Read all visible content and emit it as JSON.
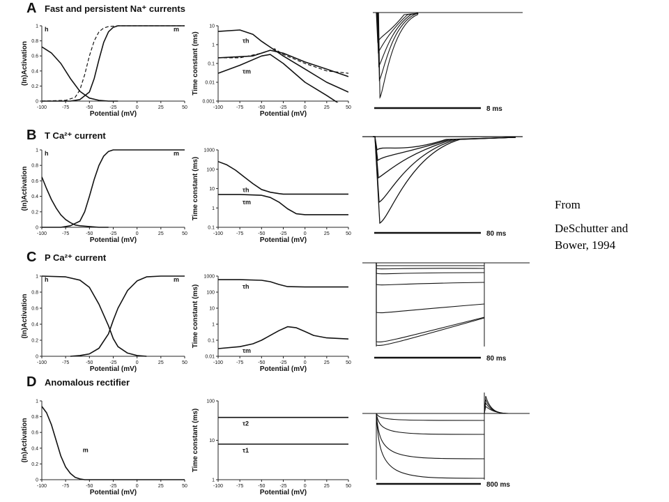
{
  "citation": {
    "line1": "From",
    "line2": "DeSchutter and Bower, 1994"
  },
  "panels": [
    {
      "letter": "A",
      "title": "Fast and persistent Na⁺ currents",
      "scale": "8 ms"
    },
    {
      "letter": "B",
      "title": "T Ca²⁺ current",
      "scale": "80 ms"
    },
    {
      "letter": "C",
      "title": "P Ca²⁺ current",
      "scale": "80 ms"
    },
    {
      "letter": "D",
      "title": "Anomalous rectifier",
      "scale": "800 ms"
    }
  ],
  "chart_data": [
    {
      "panel": "A",
      "kind": "activation",
      "type": "line",
      "xlabel": "Potential (mV)",
      "ylabel": "(In)Activation",
      "xlim": [
        -100,
        50
      ],
      "ylim": [
        0,
        1
      ],
      "xticks": [
        "-100",
        "-75",
        "-50",
        "-25",
        "0",
        "25",
        "50"
      ],
      "yticks": [
        "0",
        "0.2",
        "0.4",
        "0.6",
        "0.8",
        "1"
      ],
      "series": [
        {
          "name": "h",
          "style": "solid",
          "x": [
            -100,
            -90,
            -80,
            -70,
            -60,
            -50,
            -40,
            -30,
            -20
          ],
          "y": [
            0.72,
            0.64,
            0.5,
            0.3,
            0.13,
            0.04,
            0.01,
            0.0,
            0.0
          ]
        },
        {
          "name": "m",
          "style": "solid",
          "x": [
            -100,
            -70,
            -60,
            -50,
            -45,
            -40,
            -35,
            -30,
            -25,
            -20,
            -10,
            0,
            25,
            50
          ],
          "y": [
            0.0,
            0.0,
            0.02,
            0.12,
            0.3,
            0.55,
            0.78,
            0.92,
            0.98,
            1.0,
            1.0,
            1.0,
            1.0,
            1.0
          ]
        },
        {
          "name": "",
          "style": "dashed",
          "x": [
            -100,
            -75,
            -65,
            -60,
            -55,
            -50,
            -45,
            -40,
            -35,
            -30,
            -20,
            0,
            50
          ],
          "y": [
            0.0,
            0.01,
            0.05,
            0.15,
            0.35,
            0.6,
            0.8,
            0.92,
            0.97,
            0.99,
            1.0,
            1.0,
            1.0
          ]
        }
      ]
    },
    {
      "panel": "A",
      "kind": "tau",
      "type": "line",
      "yscale": "log",
      "xlabel": "Potential (mV)",
      "ylabel": "Time constant (ms)",
      "xlim": [
        -100,
        50
      ],
      "ylim": [
        0.001,
        10
      ],
      "xticks": [
        "-100",
        "-75",
        "-50",
        "-25",
        "0",
        "25",
        "50"
      ],
      "yticks": [
        "0.001",
        "0.01",
        "0.1",
        "1",
        "10"
      ],
      "series": [
        {
          "name": "τh",
          "style": "solid",
          "x": [
            -100,
            -75,
            -60,
            -50,
            -25,
            0,
            25,
            50
          ],
          "y": [
            5,
            6,
            3.5,
            1.5,
            0.25,
            0.05,
            0.01,
            0.003
          ]
        },
        {
          "name": "τm",
          "style": "solid",
          "x": [
            -100,
            -75,
            -50,
            -40,
            -25,
            0,
            25,
            40
          ],
          "y": [
            0.03,
            0.08,
            0.25,
            0.3,
            0.1,
            0.01,
            0.002,
            0.0007
          ]
        },
        {
          "name": "",
          "style": "dashed",
          "x": [
            -100,
            -75,
            -50,
            -35,
            -25,
            0,
            25,
            50
          ],
          "y": [
            0.2,
            0.2,
            0.35,
            0.6,
            0.3,
            0.1,
            0.04,
            0.03
          ]
        },
        {
          "name": "",
          "style": "solid",
          "x": [
            -100,
            -60,
            -40,
            -25,
            0,
            25,
            50
          ],
          "y": [
            0.2,
            0.25,
            0.5,
            0.35,
            0.12,
            0.05,
            0.02
          ]
        }
      ]
    },
    {
      "panel": "B",
      "kind": "activation",
      "type": "line",
      "xlabel": "Potential (mV)",
      "ylabel": "(In)Activation",
      "xlim": [
        -100,
        50
      ],
      "ylim": [
        0,
        1
      ],
      "xticks": [
        "-100",
        "-75",
        "-50",
        "-25",
        "0",
        "25",
        "50"
      ],
      "yticks": [
        "0",
        "0.2",
        "0.4",
        "0.6",
        "0.8",
        "1"
      ],
      "series": [
        {
          "name": "h",
          "style": "solid",
          "x": [
            -100,
            -95,
            -90,
            -85,
            -80,
            -75,
            -70,
            -65,
            -60,
            -50,
            -40,
            -30
          ],
          "y": [
            0.65,
            0.5,
            0.36,
            0.25,
            0.16,
            0.1,
            0.06,
            0.03,
            0.02,
            0.01,
            0.0,
            0.0
          ]
        },
        {
          "name": "m",
          "style": "solid",
          "x": [
            -100,
            -80,
            -70,
            -60,
            -55,
            -50,
            -45,
            -40,
            -35,
            -30,
            -25,
            0,
            50
          ],
          "y": [
            0.0,
            0.0,
            0.02,
            0.08,
            0.2,
            0.4,
            0.62,
            0.8,
            0.92,
            0.98,
            1.0,
            1.0,
            1.0
          ]
        }
      ]
    },
    {
      "panel": "B",
      "kind": "tau",
      "type": "line",
      "yscale": "log",
      "xlabel": "Potential (mV)",
      "ylabel": "Time constant (ms)",
      "xlim": [
        -100,
        50
      ],
      "ylim": [
        0.1,
        1000
      ],
      "xticks": [
        "-100",
        "-75",
        "-50",
        "-25",
        "0",
        "25",
        "50"
      ],
      "yticks": [
        "0.1",
        "1",
        "10",
        "100",
        "1000"
      ],
      "series": [
        {
          "name": "τh",
          "style": "solid",
          "x": [
            -100,
            -90,
            -80,
            -70,
            -60,
            -50,
            -40,
            -30,
            -25,
            0,
            50
          ],
          "y": [
            250,
            170,
            90,
            40,
            18,
            9,
            6.5,
            5.5,
            5.2,
            5.2,
            5.2
          ]
        },
        {
          "name": "τm",
          "style": "solid",
          "x": [
            -100,
            -75,
            -50,
            -40,
            -30,
            -20,
            -10,
            0,
            25,
            50
          ],
          "y": [
            5,
            5,
            4.5,
            3.5,
            2,
            0.9,
            0.5,
            0.45,
            0.45,
            0.45
          ]
        }
      ]
    },
    {
      "panel": "C",
      "kind": "activation",
      "type": "line",
      "xlabel": "Potential (mV)",
      "ylabel": "(In)Activation",
      "xlim": [
        -100,
        50
      ],
      "ylim": [
        0,
        1
      ],
      "xticks": [
        "-100",
        "-75",
        "-50",
        "-25",
        "0",
        "25",
        "50"
      ],
      "yticks": [
        "0",
        "0.2",
        "0.4",
        "0.6",
        "0.8",
        "1"
      ],
      "series": [
        {
          "name": "h",
          "style": "solid",
          "x": [
            -100,
            -75,
            -60,
            -50,
            -40,
            -30,
            -25,
            -20,
            -10,
            0,
            10
          ],
          "y": [
            1.0,
            0.99,
            0.95,
            0.86,
            0.65,
            0.38,
            0.22,
            0.12,
            0.04,
            0.01,
            0.0
          ]
        },
        {
          "name": "m",
          "style": "solid",
          "x": [
            -70,
            -60,
            -50,
            -40,
            -30,
            -25,
            -20,
            -10,
            0,
            10,
            25,
            50
          ],
          "y": [
            0.0,
            0.01,
            0.03,
            0.1,
            0.28,
            0.45,
            0.6,
            0.82,
            0.94,
            0.99,
            1.0,
            1.0
          ]
        }
      ]
    },
    {
      "panel": "C",
      "kind": "tau",
      "type": "line",
      "yscale": "log",
      "xlabel": "Potential (mV)",
      "ylabel": "Time constant (ms)",
      "xlim": [
        -100,
        50
      ],
      "ylim": [
        0.01,
        1000
      ],
      "xticks": [
        "-100",
        "-75",
        "-50",
        "-25",
        "0",
        "25",
        "50"
      ],
      "yticks": [
        "0.01",
        "0.1",
        "1",
        "10",
        "100",
        "1000"
      ],
      "series": [
        {
          "name": "τh",
          "style": "solid",
          "x": [
            -100,
            -75,
            -50,
            -40,
            -30,
            -20,
            0,
            25,
            50
          ],
          "y": [
            600,
            600,
            550,
            450,
            300,
            220,
            210,
            210,
            210
          ]
        },
        {
          "name": "τm",
          "style": "solid",
          "x": [
            -100,
            -75,
            -60,
            -50,
            -40,
            -30,
            -20,
            -10,
            0,
            10,
            25,
            50
          ],
          "y": [
            0.03,
            0.04,
            0.06,
            0.1,
            0.2,
            0.4,
            0.7,
            0.6,
            0.35,
            0.2,
            0.14,
            0.12
          ]
        }
      ]
    },
    {
      "panel": "D",
      "kind": "activation",
      "type": "line",
      "xlabel": "Potential (mV)",
      "ylabel": "(In)Activation",
      "xlim": [
        -100,
        50
      ],
      "ylim": [
        0,
        1
      ],
      "xticks": [
        "-100",
        "-75",
        "-50",
        "-25",
        "0",
        "25",
        "50"
      ],
      "yticks": [
        "0",
        "0.2",
        "0.4",
        "0.6",
        "0.8",
        "1"
      ],
      "series": [
        {
          "name": "m",
          "style": "solid",
          "x": [
            -100,
            -95,
            -90,
            -85,
            -80,
            -75,
            -70,
            -65,
            -60,
            -55,
            -50,
            -40,
            -25,
            0,
            50
          ],
          "y": [
            0.93,
            0.85,
            0.7,
            0.5,
            0.3,
            0.16,
            0.08,
            0.03,
            0.01,
            0.0,
            0.0,
            0.0,
            0.0,
            0.0,
            0.0
          ]
        }
      ]
    },
    {
      "panel": "D",
      "kind": "tau",
      "type": "line",
      "yscale": "log",
      "xlabel": "Potential (mV)",
      "ylabel": "Time constant (ms)",
      "xlim": [
        -100,
        50
      ],
      "ylim": [
        1,
        100
      ],
      "xticks": [
        "-100",
        "-75",
        "-50",
        "-25",
        "0",
        "25",
        "50"
      ],
      "yticks": [
        "1",
        "10",
        "100"
      ],
      "series": [
        {
          "name": "τ2",
          "style": "solid",
          "x": [
            -100,
            50
          ],
          "y": [
            38,
            38
          ]
        },
        {
          "name": "τ1",
          "style": "solid",
          "x": [
            -100,
            50
          ],
          "y": [
            8,
            8
          ]
        }
      ]
    }
  ]
}
